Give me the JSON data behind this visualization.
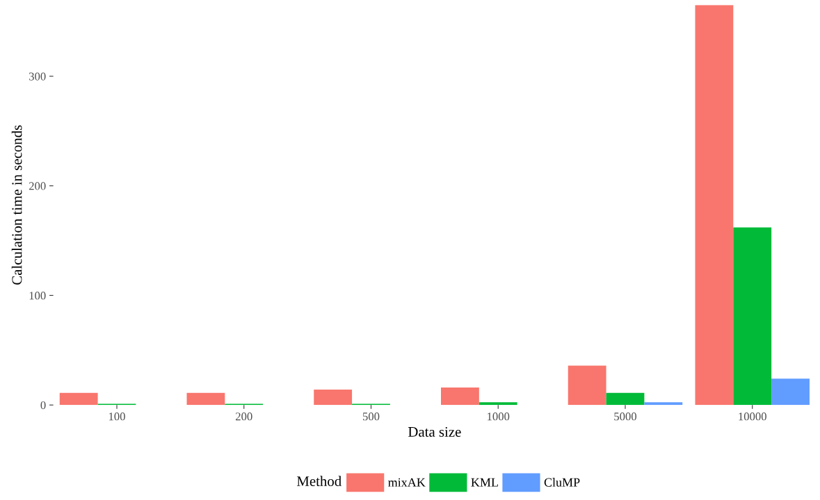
{
  "chart_data": {
    "type": "bar",
    "xlabel": "Data size",
    "ylabel": "Calculation time in seconds",
    "legend_title": "Method",
    "categories": [
      "100",
      "200",
      "500",
      "1000",
      "5000",
      "10000"
    ],
    "series": [
      {
        "name": "mixAK",
        "color": "#f8766d",
        "values": [
          11,
          11,
          14,
          16,
          36,
          365
        ]
      },
      {
        "name": "KML",
        "color": "#00ba38",
        "values": [
          1,
          1,
          1,
          2.5,
          11,
          162
        ]
      },
      {
        "name": "CluMP",
        "color": "#619cff",
        "values": [
          0,
          0,
          0,
          0,
          2.5,
          24
        ]
      }
    ],
    "ylim": [
      0,
      365
    ],
    "yticks": [
      0,
      100,
      200,
      300
    ],
    "grid": false,
    "legend": "bottom"
  }
}
